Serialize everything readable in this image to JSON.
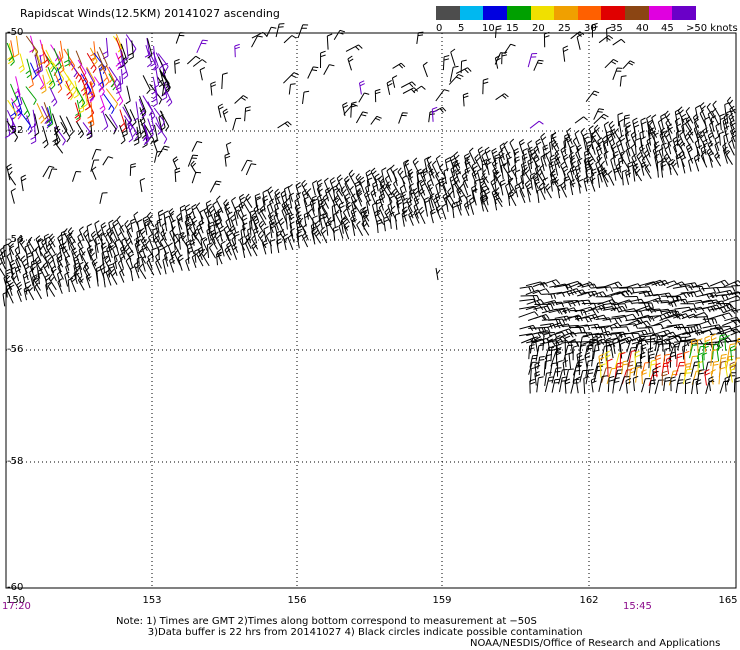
{
  "title": "Rapidscat Winds(12.5KM) 20141027 ascending",
  "legend": {
    "labels": [
      "0",
      "5",
      "10",
      "15",
      "20",
      "25",
      "30",
      "35",
      "40",
      "45",
      ">50 knots"
    ],
    "colors": [
      "#4d4d4d",
      "#00b8f0",
      "#0000e0",
      "#00a000",
      "#f0e000",
      "#f0a000",
      "#ff6000",
      "#e00000",
      "#8b4513",
      "#e000e0",
      "#6a00c8"
    ]
  },
  "axes": {
    "lat_labels": [
      "-50",
      "-52",
      "-54",
      "-56",
      "-58",
      "-60"
    ],
    "lon_labels": [
      "150",
      "153",
      "156",
      "159",
      "162",
      "165"
    ]
  },
  "times": {
    "start": "17:20",
    "end": "15:45"
  },
  "notes": {
    "line1": "Note: 1) Times are GMT 2)Times along bottom correspond to measurement at −50S",
    "line2": "3)Data buffer is 22 hrs from 20141027 4) Black circles indicate possible contamination"
  },
  "credit": "NOAA/NESDIS/Office of Research and Applications"
}
